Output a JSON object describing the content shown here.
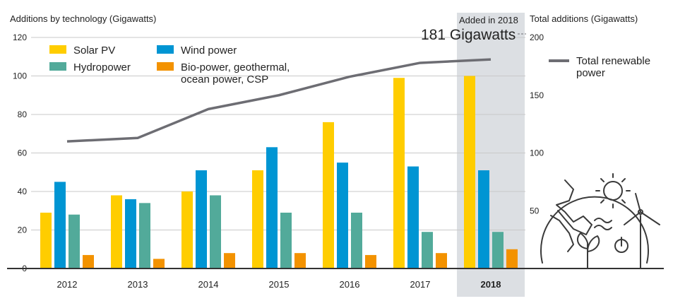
{
  "chart_data": {
    "type": "bar",
    "left_axis_label": "Additions by technology (Gigawatts)",
    "right_axis_label": "Total additions (Gigawatts)",
    "highlight_label": "Added in 2018",
    "highlight_value_label": "181 Gigawatts",
    "categories": [
      "2012",
      "2013",
      "2014",
      "2015",
      "2016",
      "2017",
      "2018"
    ],
    "highlight_category": "2018",
    "ylim": [
      0,
      120
    ],
    "yticks": [
      0,
      20,
      40,
      60,
      80,
      100,
      120
    ],
    "y2lim": [
      0,
      200
    ],
    "y2ticks": [
      50,
      100,
      150,
      200
    ],
    "series": [
      {
        "name": "Solar PV",
        "color": "#ffcd00",
        "values": [
          29,
          38,
          40,
          51,
          76,
          99,
          100
        ]
      },
      {
        "name": "Wind power",
        "color": "#0095d3",
        "values": [
          45,
          36,
          51,
          63,
          55,
          53,
          51
        ]
      },
      {
        "name": "Hydropower",
        "color": "#52aa9a",
        "values": [
          28,
          34,
          38,
          29,
          29,
          19,
          19
        ]
      },
      {
        "name": "Bio-power, geothermal,\nocean power, CSP",
        "color": "#f39200",
        "values": [
          7,
          5,
          8,
          8,
          7,
          8,
          10
        ]
      }
    ],
    "line_series": {
      "name": "Total renewable\npower",
      "color": "#6d6d73",
      "axis": "right",
      "values": [
        110,
        113,
        138,
        150,
        166,
        178,
        181
      ]
    },
    "grid": true
  }
}
